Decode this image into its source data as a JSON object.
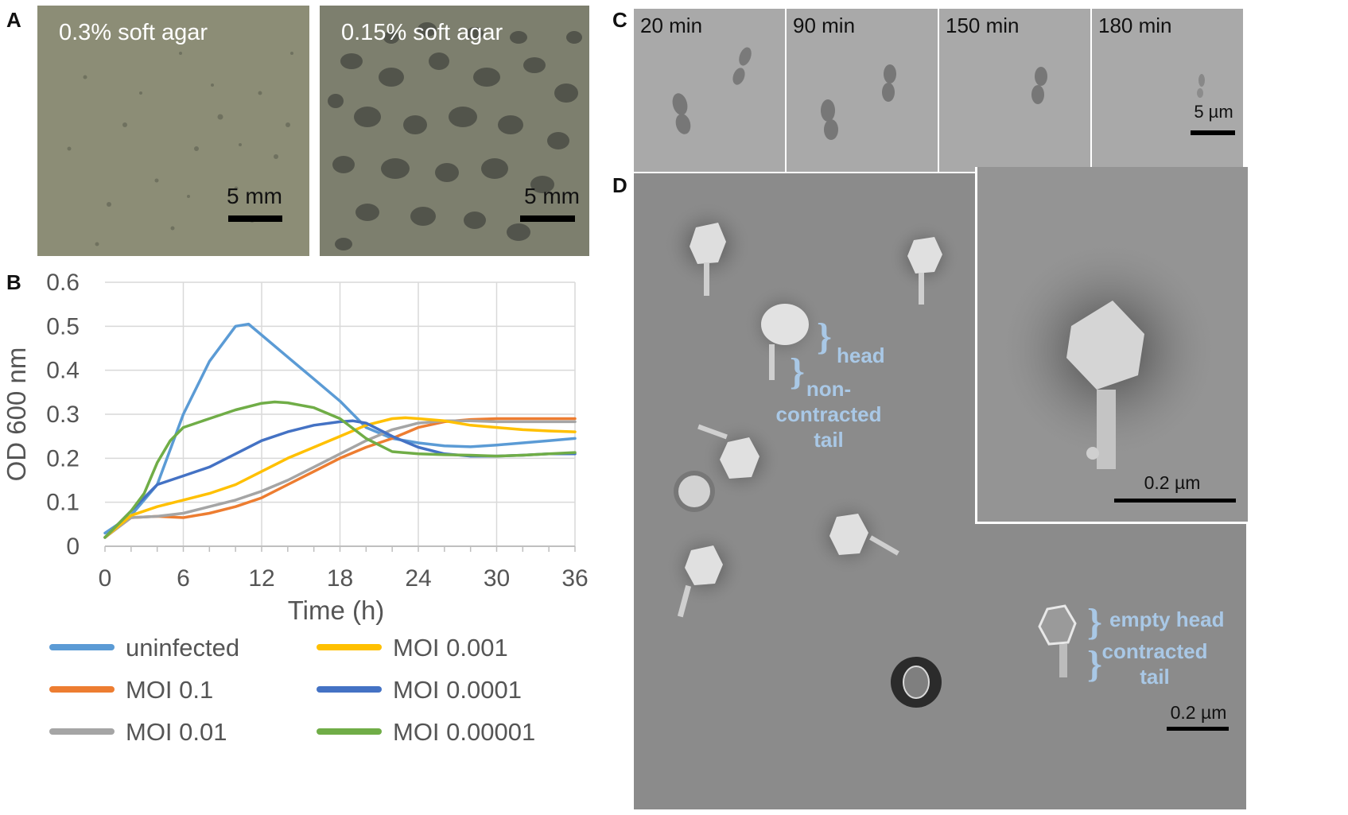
{
  "panels": {
    "A": {
      "letter": "A",
      "left_label": "0.3% soft agar",
      "right_label": "0.15% soft agar",
      "scale_left": "5 mm",
      "scale_right": "5 mm"
    },
    "B": {
      "letter": "B"
    },
    "C": {
      "letter": "C",
      "frames": [
        {
          "time": "20 min"
        },
        {
          "time": "90 min"
        },
        {
          "time": "150 min"
        },
        {
          "time": "180 min"
        }
      ],
      "scale": "5 µm"
    },
    "D": {
      "letter": "D",
      "annotations": {
        "head": "head",
        "non_contracted": [
          "non-",
          "contracted",
          "tail"
        ],
        "empty_head": "empty head",
        "contracted": [
          "contracted",
          "tail"
        ]
      },
      "scale_main": "0.2 µm",
      "scale_inset": "0.2 µm"
    }
  },
  "chart_data": {
    "type": "line",
    "xlabel": "Time (h)",
    "ylabel": "OD 600 nm",
    "xlim": [
      0,
      36
    ],
    "ylim": [
      0,
      0.6
    ],
    "xticks": [
      0,
      6,
      12,
      18,
      24,
      30,
      36
    ],
    "yticks": [
      0,
      0.1,
      0.2,
      0.3,
      0.4,
      0.5,
      0.6
    ],
    "ytick_labels": [
      "0",
      "0.1",
      "0.2",
      "0.3",
      "0.4",
      "0.5",
      "0.6"
    ],
    "grid": true,
    "legend_position": "bottom",
    "series": [
      {
        "name": "uninfected",
        "color": "#5b9bd5",
        "x": [
          0,
          2,
          4,
          6,
          8,
          10,
          11,
          12,
          14,
          16,
          18,
          20,
          22,
          24,
          26,
          28,
          30,
          32,
          34,
          36
        ],
        "y": [
          0.03,
          0.07,
          0.14,
          0.3,
          0.42,
          0.5,
          0.505,
          0.48,
          0.43,
          0.38,
          0.33,
          0.27,
          0.245,
          0.235,
          0.228,
          0.226,
          0.23,
          0.235,
          0.24,
          0.245
        ]
      },
      {
        "name": "MOI 0.1",
        "color": "#ed7d31",
        "x": [
          0,
          2,
          4,
          6,
          8,
          10,
          12,
          14,
          16,
          18,
          20,
          22,
          24,
          26,
          28,
          30,
          32,
          34,
          36
        ],
        "y": [
          0.02,
          0.065,
          0.068,
          0.065,
          0.075,
          0.09,
          0.11,
          0.14,
          0.17,
          0.2,
          0.225,
          0.245,
          0.27,
          0.283,
          0.288,
          0.29,
          0.29,
          0.29,
          0.29
        ]
      },
      {
        "name": "MOI 0.01",
        "color": "#a5a5a5",
        "x": [
          0,
          2,
          4,
          6,
          8,
          10,
          12,
          14,
          16,
          18,
          20,
          22,
          24,
          26,
          28,
          30,
          32,
          34,
          36
        ],
        "y": [
          0.02,
          0.065,
          0.068,
          0.075,
          0.09,
          0.105,
          0.125,
          0.15,
          0.18,
          0.21,
          0.24,
          0.265,
          0.28,
          0.285,
          0.285,
          0.283,
          0.283,
          0.283,
          0.283
        ]
      },
      {
        "name": "MOI 0.001",
        "color": "#ffc000",
        "x": [
          0,
          2,
          4,
          6,
          8,
          10,
          12,
          14,
          16,
          18,
          20,
          22,
          23,
          24,
          26,
          28,
          30,
          32,
          34,
          36
        ],
        "y": [
          0.02,
          0.07,
          0.09,
          0.105,
          0.12,
          0.14,
          0.17,
          0.2,
          0.225,
          0.25,
          0.275,
          0.29,
          0.292,
          0.29,
          0.285,
          0.275,
          0.27,
          0.265,
          0.262,
          0.26
        ]
      },
      {
        "name": "MOI 0.0001",
        "color": "#4472c4",
        "x": [
          0,
          2,
          4,
          6,
          8,
          10,
          12,
          14,
          16,
          18,
          19,
          20,
          22,
          24,
          26,
          28,
          30,
          32,
          34,
          36
        ],
        "y": [
          0.02,
          0.08,
          0.14,
          0.16,
          0.18,
          0.21,
          0.24,
          0.26,
          0.275,
          0.283,
          0.285,
          0.28,
          0.25,
          0.225,
          0.21,
          0.205,
          0.205,
          0.207,
          0.21,
          0.21
        ]
      },
      {
        "name": "MOI 0.00001",
        "color": "#70ad47",
        "x": [
          0,
          2,
          3,
          4,
          5,
          6,
          8,
          10,
          12,
          13,
          14,
          16,
          18,
          20,
          22,
          24,
          26,
          28,
          30,
          32,
          34,
          36
        ],
        "y": [
          0.02,
          0.08,
          0.12,
          0.19,
          0.24,
          0.27,
          0.29,
          0.31,
          0.325,
          0.328,
          0.326,
          0.315,
          0.29,
          0.245,
          0.215,
          0.21,
          0.208,
          0.207,
          0.205,
          0.207,
          0.21,
          0.213
        ]
      }
    ]
  }
}
